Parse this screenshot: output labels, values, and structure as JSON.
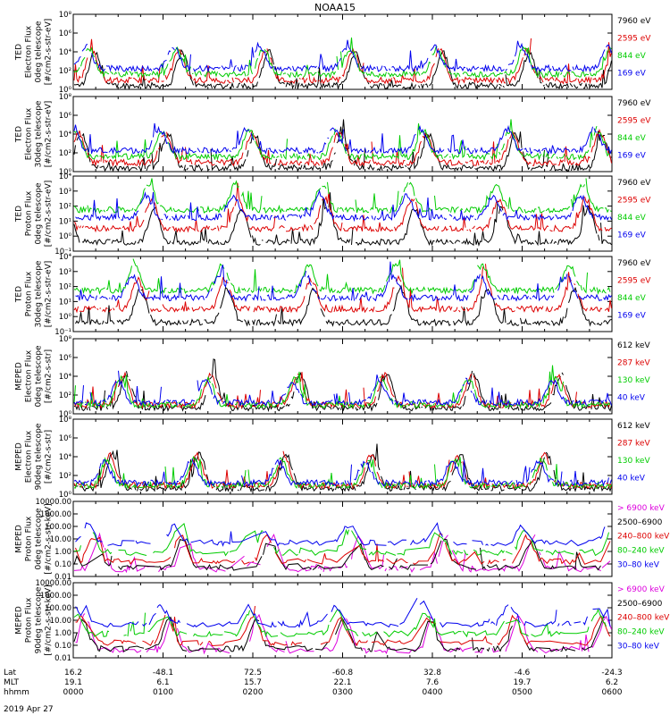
{
  "title": "NOAA15",
  "date_label": "2019 Apr 27",
  "chart_data": [
    {
      "type": "line",
      "scale": "log",
      "ylim": [
        1,
        1000000
      ],
      "yticks": [
        "10⁰",
        "10²",
        "10⁴",
        "10⁶",
        "10⁸"
      ],
      "ylabel": [
        "TED",
        "Electron Flux",
        "0deg telescope",
        "[#/cm2-s-str-eV]"
      ],
      "legend": [
        {
          "label": "7960 eV",
          "color": "#000000"
        },
        {
          "label": "2595 eV",
          "color": "#dd0000"
        },
        {
          "label": "844 eV",
          "color": "#00cc00"
        },
        {
          "label": "169 eV",
          "color": "#0000ee"
        }
      ],
      "series_colors": [
        "#000000",
        "#dd0000",
        "#00cc00",
        "#0000ee"
      ]
    },
    {
      "type": "line",
      "scale": "log",
      "ylim": [
        1,
        1000000
      ],
      "yticks": [
        "10⁰",
        "10²",
        "10⁴",
        "10⁶",
        "10⁸"
      ],
      "ylabel": [
        "TED",
        "Electron Flux",
        "30deg telescope",
        "[#/cm2-s-str-eV]"
      ],
      "legend": [
        {
          "label": "7960 eV",
          "color": "#000000"
        },
        {
          "label": "2595 eV",
          "color": "#dd0000"
        },
        {
          "label": "844 eV",
          "color": "#00cc00"
        },
        {
          "label": "169 eV",
          "color": "#0000ee"
        }
      ],
      "series_colors": [
        "#000000",
        "#dd0000",
        "#00cc00",
        "#0000ee"
      ]
    },
    {
      "type": "line",
      "scale": "log",
      "yticks": [
        "10⁻¹",
        "10⁰",
        "10¹",
        "10²",
        "10³",
        "10⁴"
      ],
      "ylabel": [
        "TED",
        "Proton Flux",
        "0deg telescope",
        "[#/cm2-s-str-eV]"
      ],
      "legend": [
        {
          "label": "7960 eV",
          "color": "#000000"
        },
        {
          "label": "2595 eV",
          "color": "#dd0000"
        },
        {
          "label": "844 eV",
          "color": "#00cc00"
        },
        {
          "label": "169 eV",
          "color": "#0000ee"
        }
      ],
      "series_colors": [
        "#000000",
        "#dd0000",
        "#00cc00",
        "#0000ee"
      ]
    },
    {
      "type": "line",
      "scale": "log",
      "yticks": [
        "10⁻¹",
        "10⁰",
        "10¹",
        "10²",
        "10³",
        "10⁴"
      ],
      "ylabel": [
        "TED",
        "Proton Flux",
        "30deg telescope",
        "[#/cm2-s-str-eV]"
      ],
      "legend": [
        {
          "label": "7960 eV",
          "color": "#000000"
        },
        {
          "label": "2595 eV",
          "color": "#dd0000"
        },
        {
          "label": "844 eV",
          "color": "#00cc00"
        },
        {
          "label": "169 eV",
          "color": "#0000ee"
        }
      ],
      "series_colors": [
        "#000000",
        "#dd0000",
        "#00cc00",
        "#0000ee"
      ]
    },
    {
      "type": "line",
      "scale": "log",
      "yticks": [
        "10⁰",
        "10²",
        "10⁴",
        "10⁶",
        "10⁸"
      ],
      "ylabel": [
        "MEPED",
        "Electron Flux",
        "0deg telescope",
        "[#/cm2-s-str]"
      ],
      "legend": [
        {
          "label": "612 keV",
          "color": "#000000"
        },
        {
          "label": "287 keV",
          "color": "#dd0000"
        },
        {
          "label": "130 keV",
          "color": "#00cc00"
        },
        {
          "label": "40 keV",
          "color": "#0000ee"
        }
      ],
      "series_colors": [
        "#000000",
        "#dd0000",
        "#00cc00",
        "#0000ee"
      ]
    },
    {
      "type": "line",
      "scale": "log",
      "yticks": [
        "10⁰",
        "10²",
        "10⁴",
        "10⁶",
        "10⁸"
      ],
      "ylabel": [
        "MEPED",
        "Electron Flux",
        "90deg telescope",
        "[#/cm2-s-str]"
      ],
      "legend": [
        {
          "label": "612 keV",
          "color": "#000000"
        },
        {
          "label": "287 keV",
          "color": "#dd0000"
        },
        {
          "label": "130 keV",
          "color": "#00cc00"
        },
        {
          "label": "40 keV",
          "color": "#0000ee"
        }
      ],
      "series_colors": [
        "#000000",
        "#dd0000",
        "#00cc00",
        "#0000ee"
      ]
    },
    {
      "type": "line",
      "scale": "log",
      "yticks": [
        "0.01",
        "0.10",
        "1.00",
        "10.00",
        "100.00",
        "1000.00",
        "10000.00"
      ],
      "ylabel": [
        "MEPED",
        "Proton Flux",
        "0deg telescope",
        "[#/cm2-s-str-keV]"
      ],
      "legend": [
        {
          "label": "> 6900 keV",
          "color": "#dd00dd"
        },
        {
          "label": "2500–6900",
          "color": "#000000"
        },
        {
          "label": "240–800 keV",
          "color": "#dd0000"
        },
        {
          "label": "80–240 keV",
          "color": "#00cc00"
        },
        {
          "label": "30–80 keV",
          "color": "#0000ee"
        }
      ],
      "series_colors": [
        "#dd00dd",
        "#000000",
        "#dd0000",
        "#00cc00",
        "#0000ee"
      ]
    },
    {
      "type": "line",
      "scale": "log",
      "yticks": [
        "0.01",
        "0.10",
        "1.00",
        "10.00",
        "100.00",
        "1000.00",
        "10000.00"
      ],
      "ylabel": [
        "MEPED",
        "Proton Flux",
        "90deg telescope",
        "[#/cm2-s-str-keV]"
      ],
      "legend": [
        {
          "label": "> 6900 keV",
          "color": "#dd00dd"
        },
        {
          "label": "2500–6900",
          "color": "#000000"
        },
        {
          "label": "240–800 keV",
          "color": "#dd0000"
        },
        {
          "label": "80–240 keV",
          "color": "#00cc00"
        },
        {
          "label": "30–80 keV",
          "color": "#0000ee"
        }
      ],
      "series_colors": [
        "#dd00dd",
        "#000000",
        "#dd0000",
        "#00cc00",
        "#0000ee"
      ]
    }
  ],
  "x_axis": {
    "row_labels": [
      "Lat",
      "MLT",
      "hhmm"
    ],
    "columns": [
      {
        "lat": "16.2",
        "mlt": "19.1",
        "hhmm": "0000"
      },
      {
        "lat": "-48.1",
        "mlt": "6.1",
        "hhmm": "0100"
      },
      {
        "lat": "72.5",
        "mlt": "15.7",
        "hhmm": "0200"
      },
      {
        "lat": "-60.8",
        "mlt": "22.1",
        "hhmm": "0300"
      },
      {
        "lat": "32.8",
        "mlt": "7.6",
        "hhmm": "0400"
      },
      {
        "lat": "-4.6",
        "mlt": "19.7",
        "hhmm": "0500"
      },
      {
        "lat": "-24.3",
        "mlt": "6.2",
        "hhmm": "0600"
      }
    ]
  }
}
